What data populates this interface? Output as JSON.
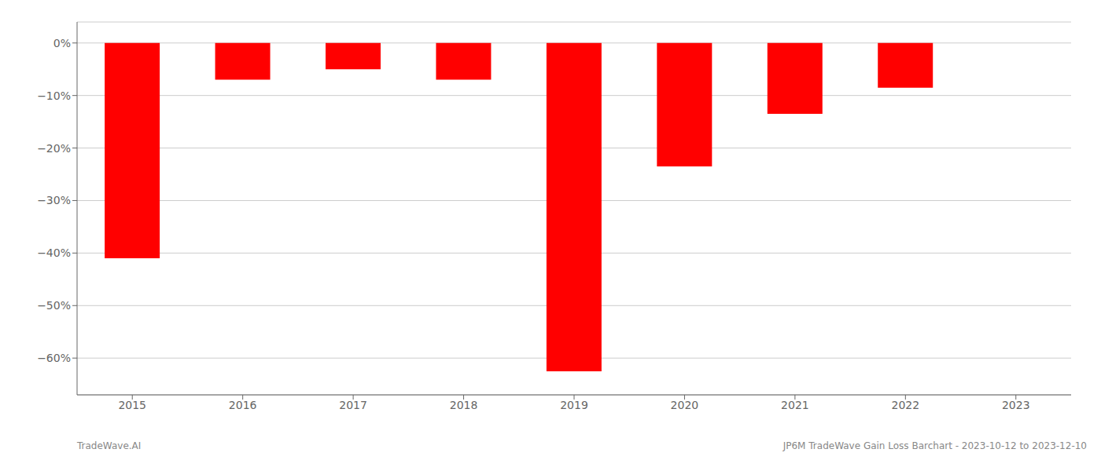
{
  "chart_data": {
    "type": "bar",
    "categories": [
      "2015",
      "2016",
      "2017",
      "2018",
      "2019",
      "2020",
      "2021",
      "2022",
      "2023"
    ],
    "values": [
      -41.0,
      -7.0,
      -5.0,
      -7.0,
      -62.5,
      -23.5,
      -13.5,
      -8.5,
      null
    ],
    "color": "#ff0000",
    "ylim": [
      -67,
      4
    ],
    "yticks": [
      {
        "value": 0,
        "label": "0%"
      },
      {
        "value": -10,
        "label": "−10%"
      },
      {
        "value": -20,
        "label": "−20%"
      },
      {
        "value": -30,
        "label": "−30%"
      },
      {
        "value": -40,
        "label": "−40%"
      },
      {
        "value": -50,
        "label": "−50%"
      },
      {
        "value": -60,
        "label": "−60%"
      }
    ],
    "grid": true,
    "annotations": [
      "TradeWave.AI",
      "JP6M TradeWave Gain Loss Barchart - 2023-10-12 to 2023-12-10"
    ]
  }
}
